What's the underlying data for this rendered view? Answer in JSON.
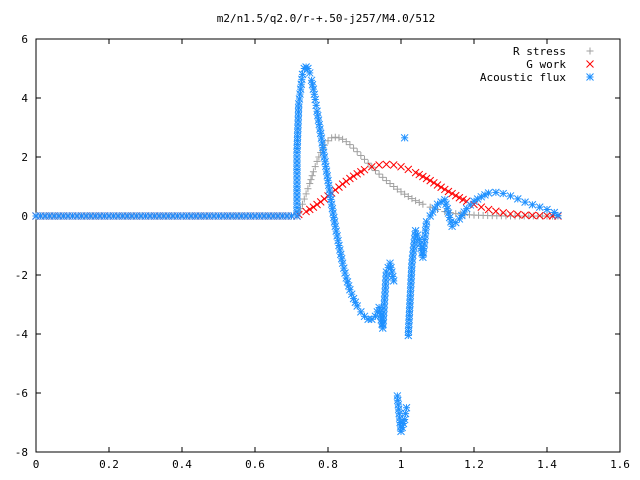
{
  "chart_data": {
    "type": "scatter",
    "title": "m2/n1.5/q2.0/r-+.50-j257/M4.0/512",
    "xlabel": "",
    "ylabel": "",
    "xlim": [
      0,
      1.6
    ],
    "ylim": [
      -8,
      6
    ],
    "x_ticks": [
      "0",
      "0.2",
      "0.4",
      "0.6",
      "0.8",
      "1",
      "1.2",
      "1.4",
      "1.6"
    ],
    "y_ticks": [
      "6",
      "4",
      "2",
      "0",
      "-2",
      "-4",
      "-6",
      "-8"
    ],
    "legend_position": "top-right",
    "grid": false,
    "series": [
      {
        "name": "R stress",
        "marker": "plus",
        "color": "#a0a0a0",
        "points": [
          [
            0.0,
            0
          ],
          [
            0.05,
            0
          ],
          [
            0.1,
            0
          ],
          [
            0.15,
            0
          ],
          [
            0.2,
            0
          ],
          [
            0.25,
            0
          ],
          [
            0.3,
            0
          ],
          [
            0.35,
            0
          ],
          [
            0.4,
            0
          ],
          [
            0.45,
            0
          ],
          [
            0.5,
            0
          ],
          [
            0.55,
            0
          ],
          [
            0.6,
            0
          ],
          [
            0.65,
            0
          ],
          [
            0.7,
            0
          ],
          [
            0.715,
            0
          ],
          [
            0.72,
            0.1
          ],
          [
            0.73,
            0.4
          ],
          [
            0.74,
            0.75
          ],
          [
            0.75,
            1.1
          ],
          [
            0.76,
            1.5
          ],
          [
            0.77,
            1.85
          ],
          [
            0.78,
            2.15
          ],
          [
            0.79,
            2.4
          ],
          [
            0.8,
            2.55
          ],
          [
            0.81,
            2.65
          ],
          [
            0.82,
            2.67
          ],
          [
            0.83,
            2.65
          ],
          [
            0.84,
            2.6
          ],
          [
            0.85,
            2.52
          ],
          [
            0.86,
            2.42
          ],
          [
            0.87,
            2.3
          ],
          [
            0.88,
            2.18
          ],
          [
            0.89,
            2.05
          ],
          [
            0.9,
            1.92
          ],
          [
            0.92,
            1.66
          ],
          [
            0.94,
            1.42
          ],
          [
            0.96,
            1.2
          ],
          [
            0.98,
            1.0
          ],
          [
            1.0,
            0.82
          ],
          [
            1.02,
            0.66
          ],
          [
            1.04,
            0.52
          ],
          [
            1.06,
            0.4
          ],
          [
            1.08,
            0.3
          ],
          [
            1.1,
            0.22
          ],
          [
            1.12,
            0.15
          ],
          [
            1.15,
            0.08
          ],
          [
            1.2,
            0.03
          ],
          [
            1.25,
            0.01
          ],
          [
            1.3,
            0.0
          ],
          [
            1.35,
            0.0
          ],
          [
            1.4,
            0.0
          ],
          [
            1.43,
            0.0
          ]
        ]
      },
      {
        "name": "G work",
        "marker": "cross",
        "color": "#ff0000",
        "points": [
          [
            0.0,
            0
          ],
          [
            0.05,
            0
          ],
          [
            0.1,
            0
          ],
          [
            0.15,
            0
          ],
          [
            0.2,
            0
          ],
          [
            0.25,
            0
          ],
          [
            0.3,
            0
          ],
          [
            0.35,
            0
          ],
          [
            0.4,
            0
          ],
          [
            0.45,
            0
          ],
          [
            0.5,
            0
          ],
          [
            0.55,
            0
          ],
          [
            0.6,
            0
          ],
          [
            0.65,
            0
          ],
          [
            0.7,
            0
          ],
          [
            0.715,
            0
          ],
          [
            0.72,
            0.05
          ],
          [
            0.74,
            0.15
          ],
          [
            0.76,
            0.3
          ],
          [
            0.78,
            0.48
          ],
          [
            0.8,
            0.68
          ],
          [
            0.82,
            0.88
          ],
          [
            0.84,
            1.08
          ],
          [
            0.86,
            1.27
          ],
          [
            0.88,
            1.43
          ],
          [
            0.9,
            1.57
          ],
          [
            0.92,
            1.67
          ],
          [
            0.94,
            1.73
          ],
          [
            0.96,
            1.75
          ],
          [
            0.98,
            1.73
          ],
          [
            1.0,
            1.67
          ],
          [
            1.02,
            1.58
          ],
          [
            1.04,
            1.47
          ],
          [
            1.06,
            1.34
          ],
          [
            1.08,
            1.2
          ],
          [
            1.1,
            1.05
          ],
          [
            1.12,
            0.9
          ],
          [
            1.14,
            0.76
          ],
          [
            1.16,
            0.62
          ],
          [
            1.18,
            0.5
          ],
          [
            1.2,
            0.39
          ],
          [
            1.22,
            0.3
          ],
          [
            1.24,
            0.22
          ],
          [
            1.26,
            0.16
          ],
          [
            1.28,
            0.11
          ],
          [
            1.3,
            0.07
          ],
          [
            1.32,
            0.05
          ],
          [
            1.34,
            0.03
          ],
          [
            1.36,
            0.02
          ],
          [
            1.38,
            0.01
          ],
          [
            1.4,
            0.01
          ],
          [
            1.43,
            0.0
          ]
        ]
      },
      {
        "name": "Acoustic flux",
        "marker": "star",
        "color": "#1e90ff",
        "points": [
          [
            0.0,
            0
          ],
          [
            0.05,
            0
          ],
          [
            0.1,
            0
          ],
          [
            0.15,
            0
          ],
          [
            0.2,
            0
          ],
          [
            0.25,
            0
          ],
          [
            0.3,
            0
          ],
          [
            0.35,
            0
          ],
          [
            0.4,
            0
          ],
          [
            0.45,
            0
          ],
          [
            0.5,
            0
          ],
          [
            0.55,
            0
          ],
          [
            0.6,
            0
          ],
          [
            0.65,
            0
          ],
          [
            0.7,
            0
          ],
          [
            0.715,
            0
          ],
          [
            0.715,
            2.15
          ],
          [
            0.72,
            3.8
          ],
          [
            0.725,
            4.3
          ],
          [
            0.73,
            4.8
          ],
          [
            0.735,
            5.0
          ],
          [
            0.74,
            5.05
          ],
          [
            0.745,
            5.0
          ],
          [
            0.75,
            4.85
          ],
          [
            0.755,
            4.6
          ],
          [
            0.76,
            4.3
          ],
          [
            0.765,
            3.95
          ],
          [
            0.77,
            3.55
          ],
          [
            0.78,
            2.8
          ],
          [
            0.79,
            2.0
          ],
          [
            0.8,
            1.2
          ],
          [
            0.81,
            0.4
          ],
          [
            0.82,
            -0.35
          ],
          [
            0.83,
            -1.0
          ],
          [
            0.84,
            -1.6
          ],
          [
            0.85,
            -2.1
          ],
          [
            0.86,
            -2.5
          ],
          [
            0.87,
            -2.8
          ],
          [
            0.88,
            -3.05
          ],
          [
            0.89,
            -3.25
          ],
          [
            0.9,
            -3.4
          ],
          [
            0.91,
            -3.5
          ],
          [
            0.92,
            -3.5
          ],
          [
            0.93,
            -3.4
          ],
          [
            0.94,
            -3.1
          ],
          [
            0.95,
            -3.8
          ],
          [
            0.96,
            -1.9
          ],
          [
            0.97,
            -1.6
          ],
          [
            0.98,
            -2.2
          ],
          [
            0.99,
            -6.1
          ],
          [
            1.0,
            -7.3
          ],
          [
            1.01,
            -6.9
          ],
          [
            1.015,
            -6.5
          ],
          [
            1.01,
            2.65
          ],
          [
            1.02,
            -4.05
          ],
          [
            1.03,
            -1.6
          ],
          [
            1.04,
            -0.5
          ],
          [
            1.05,
            -0.8
          ],
          [
            1.06,
            -1.4
          ],
          [
            1.07,
            -0.2
          ],
          [
            1.08,
            0.0
          ],
          [
            1.1,
            0.4
          ],
          [
            1.12,
            0.55
          ],
          [
            1.14,
            -0.35
          ],
          [
            1.16,
            -0.1
          ],
          [
            1.18,
            0.25
          ],
          [
            1.2,
            0.5
          ],
          [
            1.22,
            0.65
          ],
          [
            1.24,
            0.78
          ],
          [
            1.26,
            0.8
          ],
          [
            1.28,
            0.76
          ],
          [
            1.3,
            0.68
          ],
          [
            1.32,
            0.58
          ],
          [
            1.34,
            0.47
          ],
          [
            1.36,
            0.38
          ],
          [
            1.38,
            0.3
          ],
          [
            1.4,
            0.22
          ],
          [
            1.42,
            0.12
          ],
          [
            1.43,
            0.02
          ]
        ]
      }
    ]
  }
}
